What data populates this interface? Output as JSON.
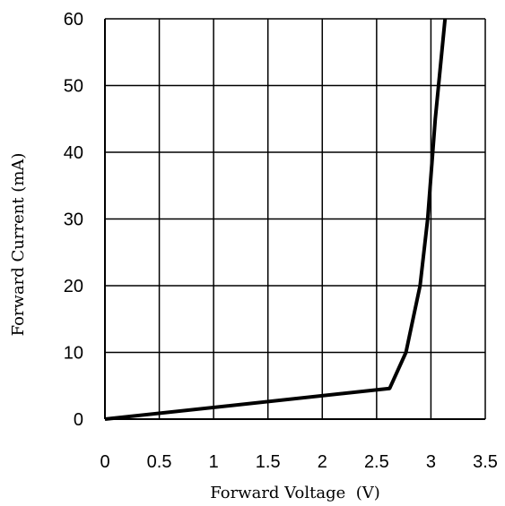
{
  "chart_data": {
    "type": "line",
    "title": "",
    "xlabel": "Forward Voltage  (V)",
    "ylabel": "Forward Current (mA)",
    "xlim": [
      0,
      3.5
    ],
    "ylim": [
      0,
      60
    ],
    "x_ticks": [
      0,
      0.5,
      1,
      1.5,
      2,
      2.5,
      3,
      3.5
    ],
    "x_tick_labels": [
      "0",
      "0.5",
      "1",
      "1.5",
      "2",
      "2.5",
      "3",
      "3.5"
    ],
    "y_ticks": [
      0,
      10,
      20,
      30,
      40,
      50,
      60
    ],
    "y_tick_labels": [
      "0",
      "10",
      "20",
      "30",
      "40",
      "50",
      "60"
    ],
    "grid": true,
    "series": [
      {
        "x": [
          0,
          2.62,
          2.77,
          2.9,
          2.97,
          3.04,
          3.13
        ],
        "y": [
          0,
          4.6,
          10,
          20,
          30,
          45,
          60
        ]
      }
    ],
    "colors": {
      "line": "#000000",
      "grid": "#000000",
      "background": "#ffffff"
    }
  }
}
